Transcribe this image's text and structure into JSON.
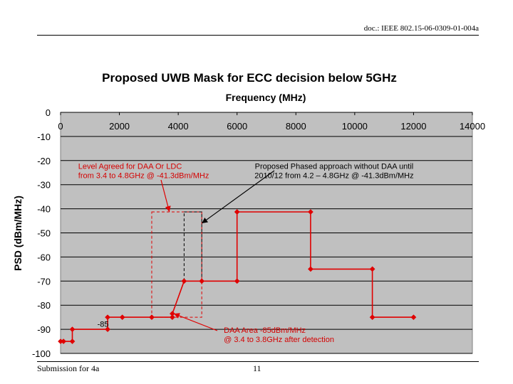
{
  "header": {
    "doc_id": "doc.: IEEE 802.15-06-0309-01-004a"
  },
  "footer": {
    "submission": "Submission for 4a",
    "page_number": "11"
  },
  "colors": {
    "mask_line": "#e00000",
    "plot_area": "#c0c0c0",
    "gridline": "#000000",
    "annotation_text": "#d40000"
  },
  "chart_data": {
    "type": "line",
    "title": "Proposed UWB Mask for ECC decision below 5GHz",
    "xlabel": "Frequency (MHz)",
    "ylabel": "PSD (dBm/MHz)",
    "xlim": [
      0,
      14000
    ],
    "ylim": [
      -100,
      0
    ],
    "x_ticks": [
      0,
      2000,
      4000,
      6000,
      8000,
      10000,
      12000,
      14000
    ],
    "x_tick_labels": [
      "0",
      "2000",
      "4000",
      "6000",
      "8000",
      "10000",
      "12000",
      "14000"
    ],
    "y_ticks": [
      0,
      -10,
      -20,
      -30,
      -40,
      -50,
      -60,
      -70,
      -80,
      -90,
      -100
    ],
    "y_tick_labels": [
      "0",
      "-10",
      "-20",
      "-30",
      "-40",
      "-50",
      "-60",
      "-70",
      "-80",
      "-90",
      "-100"
    ],
    "x_axis_position": "top",
    "grid": "horizontal",
    "series": [
      {
        "name": "Proposed mask",
        "points": [
          [
            0,
            -95
          ],
          [
            100,
            -95
          ],
          [
            400,
            -95
          ],
          [
            400,
            -90
          ],
          [
            1600,
            -90
          ],
          [
            1600,
            -85
          ],
          [
            2100,
            -85
          ],
          [
            3100,
            -85
          ],
          [
            3800,
            -85
          ],
          [
            3800,
            -83.5
          ],
          [
            4200,
            -70
          ],
          [
            4800,
            -70
          ],
          [
            6000,
            -70
          ],
          [
            6000,
            -41.3
          ],
          [
            8500,
            -41.3
          ],
          [
            8500,
            -65
          ],
          [
            10600,
            -65
          ],
          [
            10600,
            -85
          ],
          [
            12000,
            -85
          ]
        ],
        "markers": [
          [
            0,
            -95
          ],
          [
            100,
            -95
          ],
          [
            400,
            -95
          ],
          [
            400,
            -90
          ],
          [
            1600,
            -90
          ],
          [
            1600,
            -85
          ],
          [
            2100,
            -85
          ],
          [
            3100,
            -85
          ],
          [
            3800,
            -85
          ],
          [
            3800,
            -83.5
          ],
          [
            4200,
            -70
          ],
          [
            4800,
            -70
          ],
          [
            6000,
            -70
          ],
          [
            6000,
            -41.3
          ],
          [
            8500,
            -41.3
          ],
          [
            8500,
            -65
          ],
          [
            10600,
            -65
          ],
          [
            10600,
            -85
          ],
          [
            12000,
            -85
          ]
        ]
      }
    ],
    "regions": [
      {
        "name": "DAA or LDC region",
        "x": [
          3100,
          4800
        ],
        "y": [
          -41.3,
          -85
        ],
        "style": "red-dashed"
      },
      {
        "name": "Phased approach region",
        "x": [
          4200,
          4800
        ],
        "y": [
          -41.3,
          -70
        ],
        "style": "black-dashed"
      }
    ],
    "annotations": [
      {
        "id": "daa-ldc",
        "lines": [
          "Level Agreed for DAA Or LDC",
          "from 3.4 to 4.8GHz @ -41.3dBm/MHz"
        ],
        "color": "red",
        "anchor": [
          600,
          -23.5
        ],
        "points_to": [
          3700,
          -41.3
        ]
      },
      {
        "id": "phased",
        "lines": [
          "Proposed Phased approach without DAA until",
          "2010/12 from 4.2 – 4.8GHz @ -41.3dBm/MHz"
        ],
        "color": "black",
        "anchor": [
          9300,
          -23.5
        ],
        "points_to": [
          4800,
          -46
        ]
      },
      {
        "id": "daa-area",
        "lines": [
          "DAA Area -85dBm/MHz",
          "@ 3.4 to 3.8GHz after detection"
        ],
        "color": "red",
        "anchor": [
          5550,
          -91.5
        ],
        "points_to": [
          3850,
          -83.5
        ]
      },
      {
        "id": "minus85",
        "lines": [
          "-85"
        ],
        "color": "black",
        "anchor": [
          1250,
          -89
        ],
        "points_to": null
      }
    ]
  }
}
